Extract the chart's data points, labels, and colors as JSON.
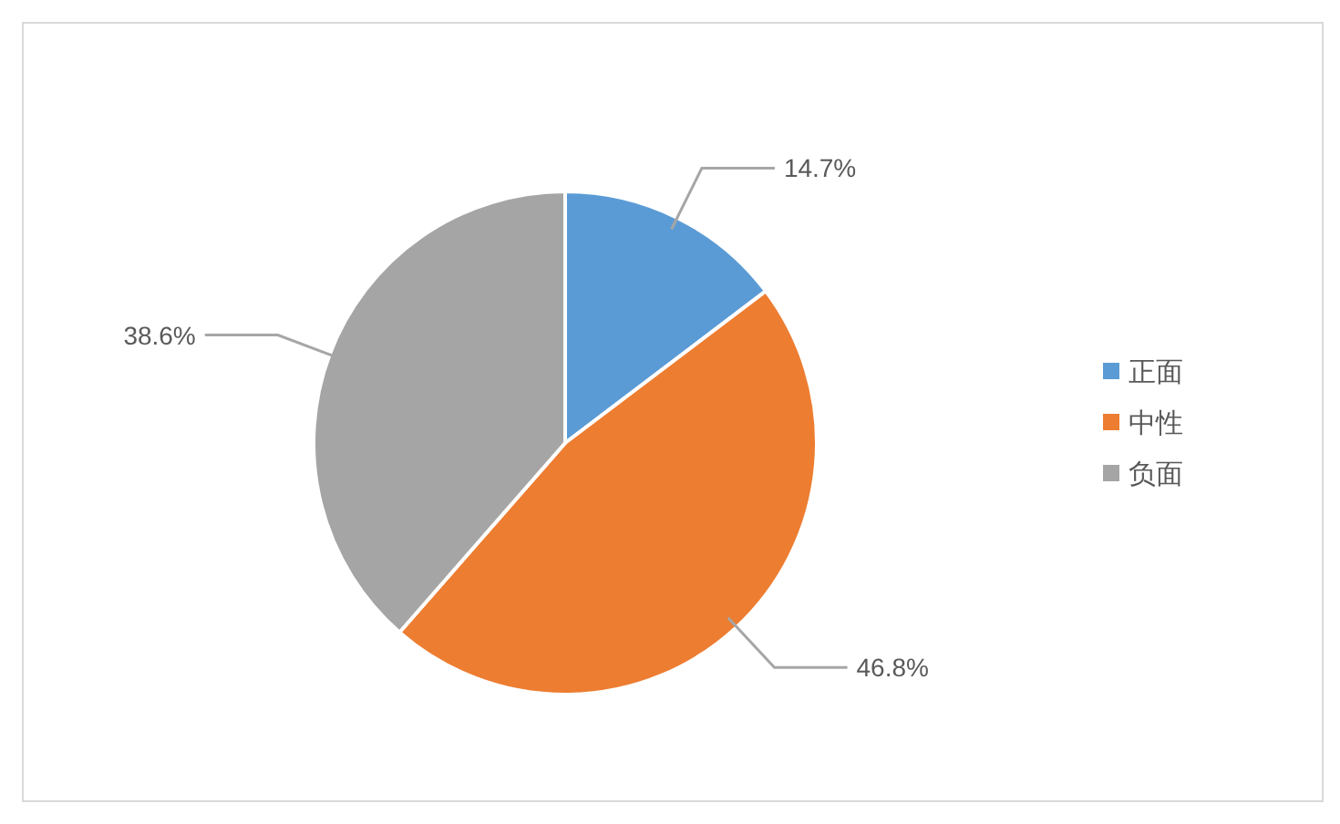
{
  "chart_data": {
    "type": "pie",
    "categories": [
      "正面",
      "中性",
      "负面"
    ],
    "values": [
      14.7,
      46.8,
      38.6
    ],
    "colors": [
      "#5b9bd5",
      "#ed7d31",
      "#a5a5a5"
    ],
    "value_labels": [
      "14.7%",
      "46.8%",
      "38.6%"
    ],
    "legend": "right"
  }
}
